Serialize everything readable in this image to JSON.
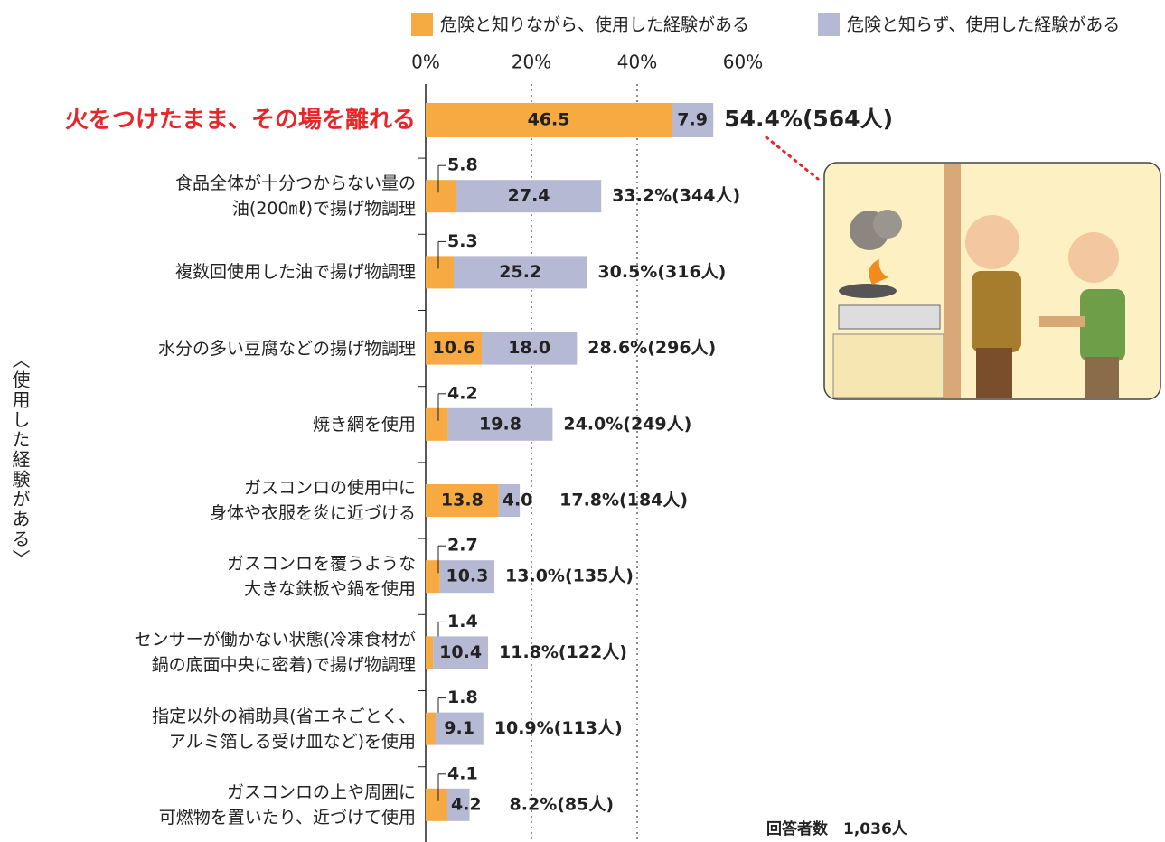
{
  "chart_data": {
    "type": "stacked-bar-horizontal",
    "categories": [
      "火をつけたまま、その場を離れる",
      "食品全体が十分つからない量の\n油(200㎖)で揚げ物調理",
      "複数回使用した油で揚げ物調理",
      "水分の多い豆腐などの揚げ物調理",
      "焼き網を使用",
      "ガスコンロの使用中に\n身体や衣服を炎に近づける",
      "ガスコンロを覆うような\n大きな鉄板や鍋を使用",
      "センサーが働かない状態(冷凍食材が\n鍋の底面中央に密着)で揚げ物調理",
      "指定以外の補助具(省エネごとく、\nアルミ箔しる受け皿など)を使用",
      "ガスコンロの上や周囲に\n可燃物を置いたり、近づけて使用"
    ],
    "series": [
      {
        "name": "危険と知りながら、使用した経験がある",
        "color": "#f7a942",
        "values": [
          46.5,
          5.8,
          5.3,
          10.6,
          4.2,
          13.8,
          2.7,
          1.4,
          1.8,
          4.1
        ]
      },
      {
        "name": "危険と知らず、使用した経験がある",
        "color": "#b5b9d3",
        "values": [
          7.9,
          27.4,
          25.2,
          18.0,
          19.8,
          4.0,
          10.3,
          10.4,
          9.1,
          4.2
        ]
      }
    ],
    "total_labels": [
      "54.4%(564人)",
      "33.2%(344人)",
      "30.5%(316人)",
      "28.6%(296人)",
      "24.0%(249人)",
      "17.8%(184人)",
      "13.0%(135人)",
      "11.8%(122人)",
      "10.9%(113人)",
      "8.2%(85人)"
    ],
    "value_labels": [
      [
        "46.5",
        "5.8",
        "5.3",
        "10.6",
        "4.2",
        "13.8",
        "2.7",
        "1.4",
        "1.8",
        "4.1"
      ],
      [
        "7.9",
        "27.4",
        "25.2",
        "18.0",
        "19.8",
        "4.0",
        "10.3",
        "10.4",
        "9.1",
        "4.2"
      ]
    ],
    "xlim": [
      0,
      60
    ],
    "xticks": [
      {
        "value": 0,
        "label": "0%"
      },
      {
        "value": 20,
        "label": "20%"
      },
      {
        "value": 40,
        "label": "40%"
      },
      {
        "value": 60,
        "label": "60%"
      }
    ],
    "y_label": "〈使用した経験がある〉",
    "note": "回答者数　1,036人",
    "grid": true
  }
}
